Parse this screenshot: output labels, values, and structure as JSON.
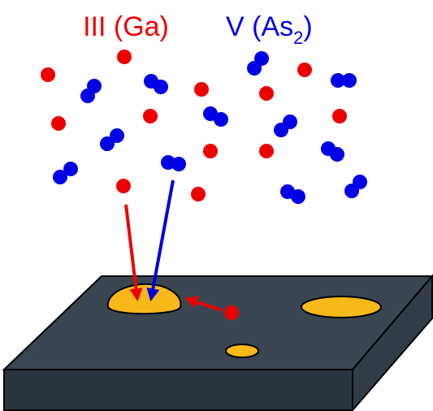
{
  "labels": {
    "group_iii": "III (Ga)",
    "group_v": {
      "text": "V (As",
      "subscript": "2",
      "suffix": ")"
    }
  }
}
